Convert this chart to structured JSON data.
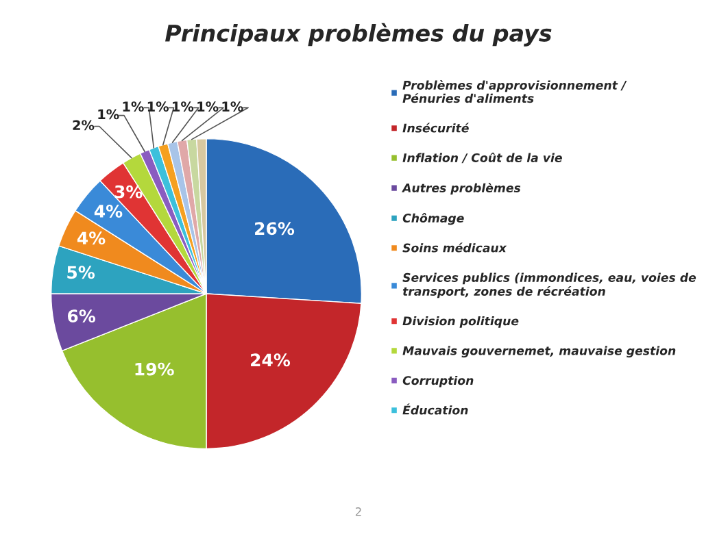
{
  "chart_data": {
    "type": "pie",
    "title": "Principaux problèmes du pays",
    "categories": [
      "Problèmes d'approvisionnement /\nPénuries d'aliments",
      "Insécurité",
      "Inflation / Coût de la vie",
      "Autres problèmes",
      "Chômage",
      "Soins médicaux",
      "Services publics (immondices, eau, voies de\ntransport, zones de récréation",
      "Division politique",
      "Mauvais gouvernemet, mauvaise gestion",
      "Corruption",
      "Éducation",
      null,
      null,
      null,
      null,
      null
    ],
    "values": [
      26,
      24,
      19,
      6,
      5,
      4,
      4,
      3,
      2,
      1,
      1,
      1,
      1,
      1,
      1,
      1
    ],
    "value_labels": [
      "26%",
      "24%",
      "19%",
      "6%",
      "5%",
      "4%",
      "4%",
      "3%",
      "2%",
      "1%",
      "1%",
      "1%",
      "1%",
      "1%",
      "1%",
      null
    ],
    "colors": [
      "#2a6cb8",
      "#c3262a",
      "#96bf2e",
      "#6b4a9e",
      "#2da3bf",
      "#f08a1e",
      "#3a8ad8",
      "#e03434",
      "#b4d83c",
      "#8a5cc0",
      "#3cc0dc",
      "#f5a020",
      "#a8c4e8",
      "#e0a8a8",
      "#c8d8a0",
      "#d8c8a0"
    ],
    "legend": "right",
    "annotations": [
      "2"
    ]
  }
}
